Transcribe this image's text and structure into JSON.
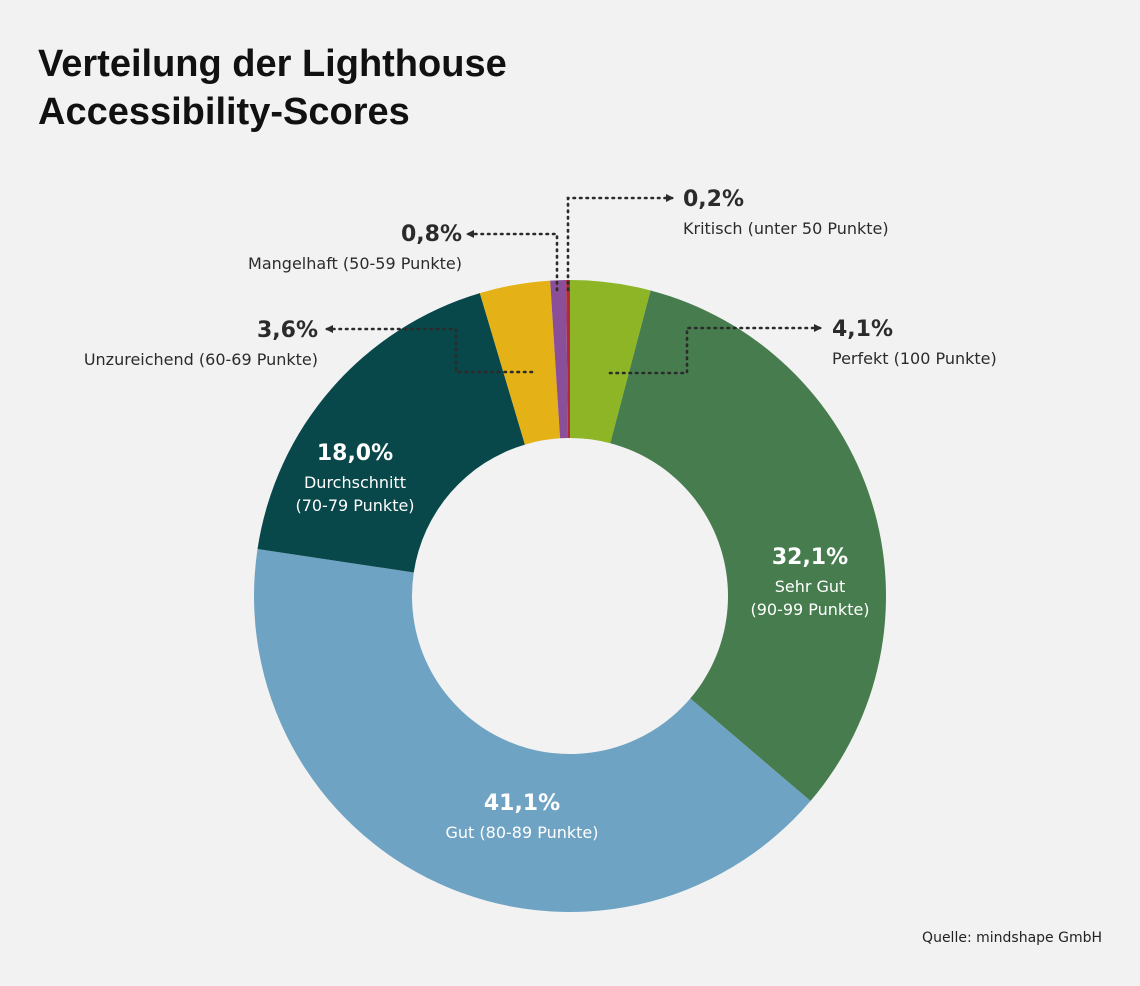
{
  "title_lines": [
    "Verteilung der Lighthouse",
    "Accessibility-Scores"
  ],
  "source": "Quelle: mindshape GmbH",
  "chart_data": {
    "type": "pie",
    "variant": "donut",
    "title": "Verteilung der Lighthouse Accessibility-Scores",
    "start_angle_deg": 0,
    "direction": "clockwise",
    "slices": [
      {
        "label": "Perfekt (100 Punkte)",
        "percent_label": "4,1%",
        "value": 4.1,
        "color": "#8db526",
        "label_position": "outside"
      },
      {
        "label": "Sehr Gut (90-99 Punkte)",
        "label_lines": [
          "Sehr Gut",
          "(90-99 Punkte)"
        ],
        "percent_label": "32,1%",
        "value": 32.1,
        "color": "#477d4e",
        "label_position": "inside"
      },
      {
        "label": "Gut (80-89 Punkte)",
        "label_lines": [
          "Gut (80-89 Punkte)"
        ],
        "percent_label": "41,1%",
        "value": 41.1,
        "color": "#6fa3c3",
        "label_position": "inside"
      },
      {
        "label": "Durchschnitt (70-79 Punkte)",
        "label_lines": [
          "Durchschnitt",
          "(70-79 Punkte)"
        ],
        "percent_label": "18,0%",
        "value": 18.0,
        "color": "#08474a",
        "label_position": "inside"
      },
      {
        "label": "Unzureichend (60-69 Punkte)",
        "percent_label": "3,6%",
        "value": 3.6,
        "color": "#e4b217",
        "label_position": "outside"
      },
      {
        "label": "Mangelhaft (50-59 Punkte)",
        "percent_label": "0,8%",
        "value": 0.8,
        "color": "#8a4f98",
        "label_position": "outside"
      },
      {
        "label": "Kritisch (unter 50 Punkte)",
        "percent_label": "0,2%",
        "value": 0.2,
        "color": "#b22a3e",
        "label_position": "outside"
      }
    ]
  }
}
